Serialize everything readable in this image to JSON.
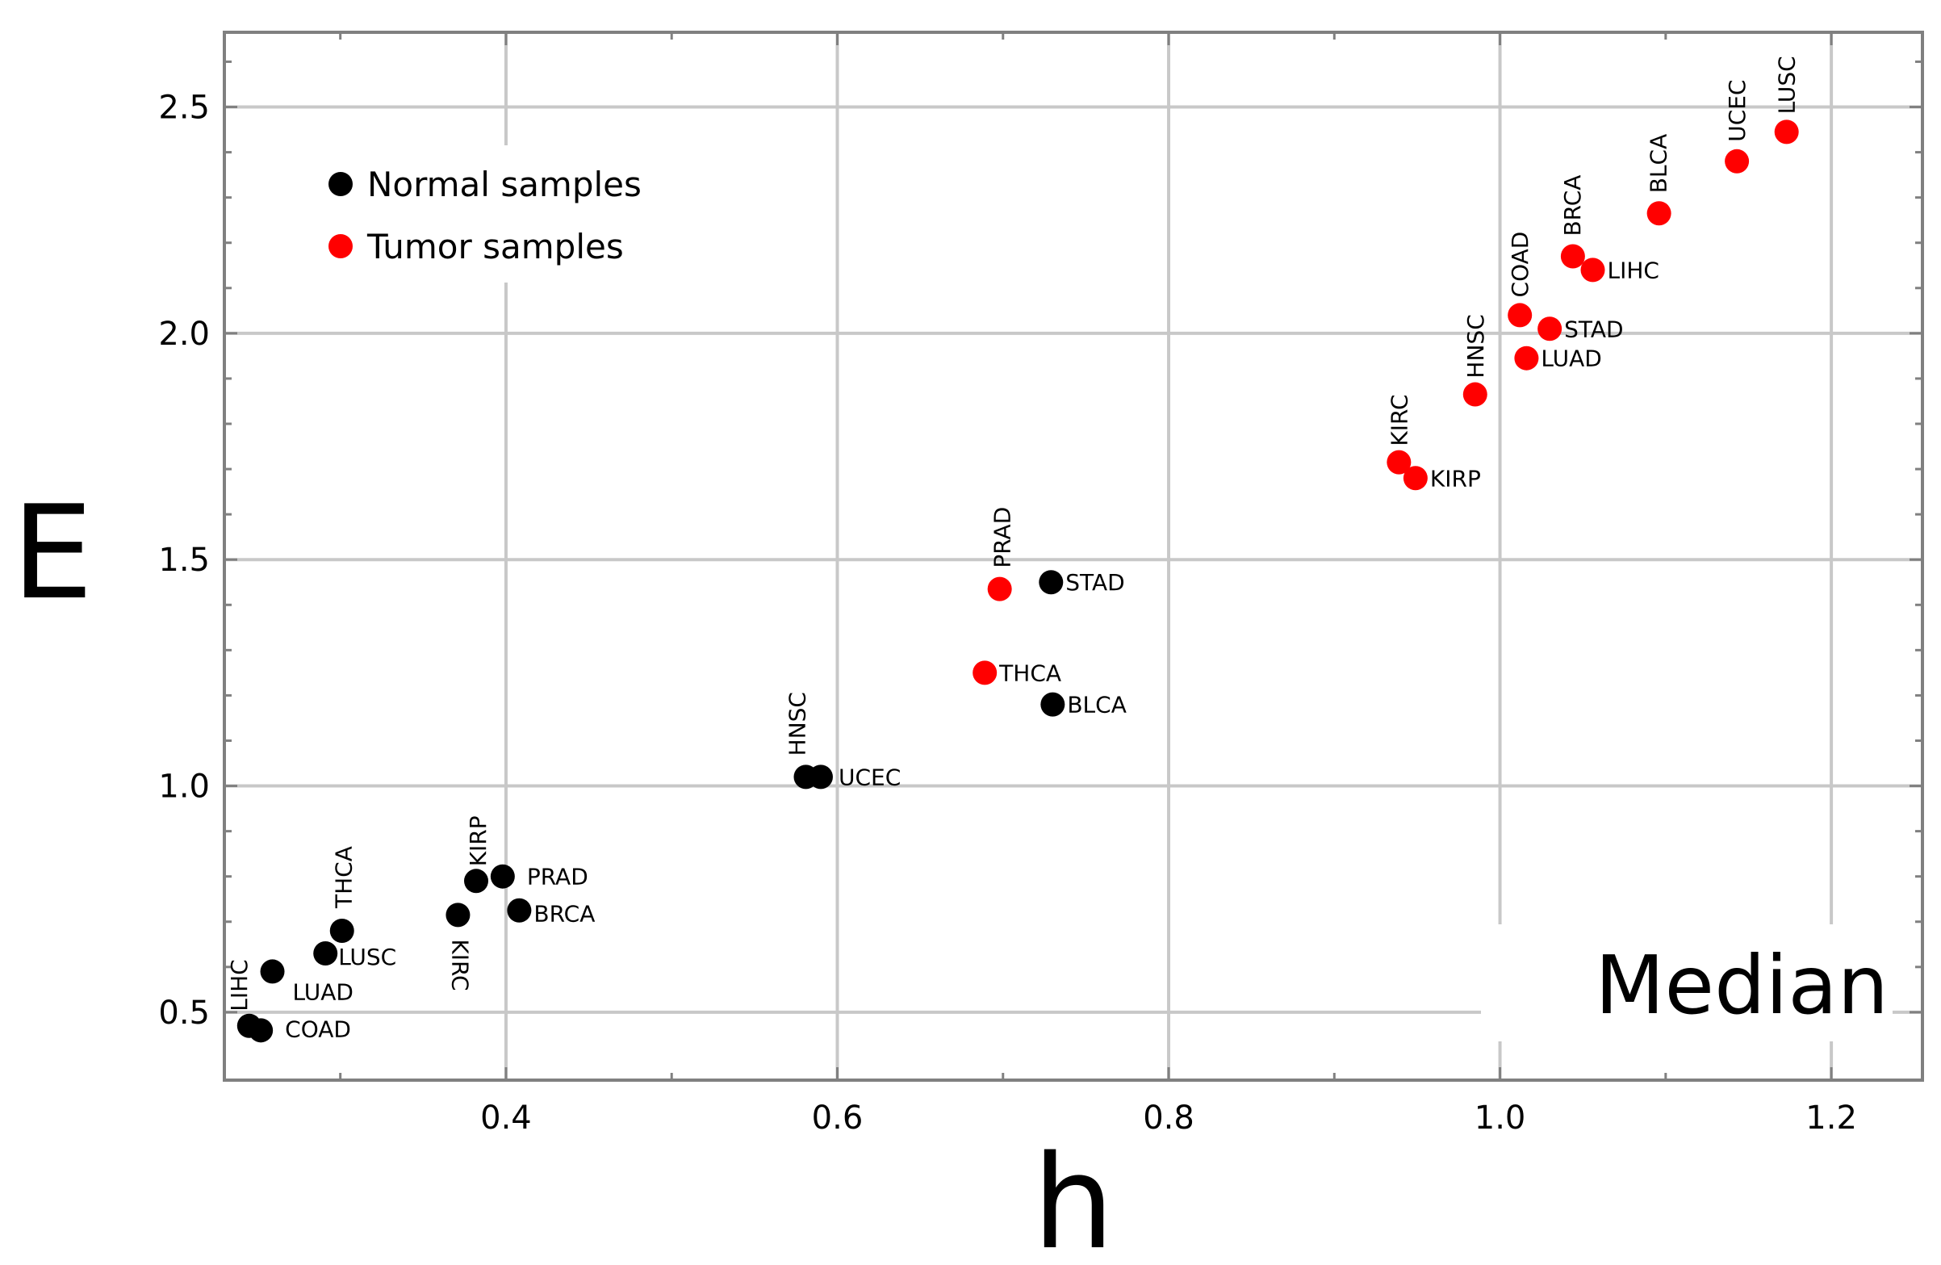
{
  "chart_data": {
    "type": "scatter",
    "title": "",
    "xlabel": "h",
    "ylabel": "E",
    "annotation": "Median",
    "xlim": [
      0.23,
      1.255
    ],
    "ylim": [
      0.35,
      2.665
    ],
    "xticks": [
      0.4,
      0.6,
      0.8,
      1.0,
      1.2
    ],
    "xtick_labels": [
      "0.4",
      "0.6",
      "0.8",
      "1.0",
      "1.2"
    ],
    "yticks": [
      0.5,
      1.0,
      1.5,
      2.0,
      2.5
    ],
    "ytick_labels": [
      "0.5",
      "1.0",
      "1.5",
      "2.0",
      "2.5"
    ],
    "grid": true,
    "legend_position": "top-left",
    "series": [
      {
        "name": "Normal samples",
        "color": "#000000",
        "points": [
          {
            "x": 0.245,
            "y": 0.47,
            "label": "LIHC"
          },
          {
            "x": 0.252,
            "y": 0.46,
            "label": "COAD"
          },
          {
            "x": 0.259,
            "y": 0.59,
            "label": "LUAD"
          },
          {
            "x": 0.291,
            "y": 0.63,
            "label": "LUSC"
          },
          {
            "x": 0.301,
            "y": 0.68,
            "label": "THCA"
          },
          {
            "x": 0.371,
            "y": 0.715,
            "label": "KIRC"
          },
          {
            "x": 0.382,
            "y": 0.79,
            "label": "KIRP"
          },
          {
            "x": 0.398,
            "y": 0.8,
            "label": "PRAD"
          },
          {
            "x": 0.408,
            "y": 0.725,
            "label": "BRCA"
          },
          {
            "x": 0.581,
            "y": 1.02,
            "label": "HNSC"
          },
          {
            "x": 0.59,
            "y": 1.02,
            "label": "UCEC"
          },
          {
            "x": 0.729,
            "y": 1.45,
            "label": "STAD"
          },
          {
            "x": 0.73,
            "y": 1.18,
            "label": "BLCA"
          }
        ]
      },
      {
        "name": "Tumor samples",
        "color": "#ff0000",
        "points": [
          {
            "x": 0.689,
            "y": 1.25,
            "label": "THCA"
          },
          {
            "x": 0.698,
            "y": 1.435,
            "label": "PRAD"
          },
          {
            "x": 0.939,
            "y": 1.715,
            "label": "KIRC"
          },
          {
            "x": 0.949,
            "y": 1.68,
            "label": "KIRP"
          },
          {
            "x": 0.985,
            "y": 1.865,
            "label": "HNSC"
          },
          {
            "x": 1.012,
            "y": 2.04,
            "label": "COAD"
          },
          {
            "x": 1.016,
            "y": 1.945,
            "label": "LUAD"
          },
          {
            "x": 1.03,
            "y": 2.01,
            "label": "STAD"
          },
          {
            "x": 1.044,
            "y": 2.17,
            "label": "BRCA"
          },
          {
            "x": 1.056,
            "y": 2.14,
            "label": "LIHC"
          },
          {
            "x": 1.096,
            "y": 2.265,
            "label": "BLCA"
          },
          {
            "x": 1.143,
            "y": 2.38,
            "label": "UCEC"
          },
          {
            "x": 1.173,
            "y": 2.445,
            "label": "LUSC"
          }
        ]
      }
    ]
  }
}
